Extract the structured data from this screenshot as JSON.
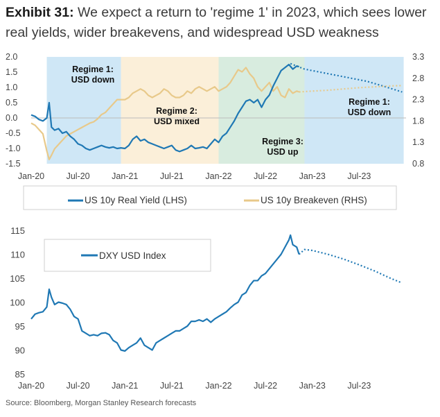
{
  "title": {
    "label": "Exhibit 31:",
    "text": "We expect a return to 'regime 1' in 2023, which sees lower real yields, wider breakevens, and widespread USD weakness"
  },
  "source": "Source: Bloomberg, Morgan Stanley Research forecasts",
  "colors": {
    "blue": "#1f78b4",
    "gold": "#e8c98a",
    "regime1": "#cfe7f6",
    "regime2": "#fbefd9",
    "regime3": "#d8ecdf",
    "grid": "#bbbbbb"
  },
  "chart_data": [
    {
      "type": "line",
      "x_tick_labels": [
        "Jan-20",
        "Jul-20",
        "Jan-21",
        "Jul-21",
        "Jan-22",
        "Jul-22",
        "Jan-23",
        "Jul-23"
      ],
      "x_range": [
        "2020-01",
        "2023-12"
      ],
      "ylim_left": [
        -1.5,
        2.0
      ],
      "yticks_left": [
        "2.0",
        "1.5",
        "1.0",
        "0.5",
        "0.0",
        "-0.5",
        "-1.0",
        "-1.5"
      ],
      "ylim_right": [
        0.8,
        3.3
      ],
      "yticks_right": [
        "3.3",
        "2.8",
        "2.3",
        "1.8",
        "1.3",
        "0.8"
      ],
      "regimes": [
        {
          "label1": "Regime 1:",
          "label2": "USD down",
          "start": 2,
          "end": 11.5,
          "color": "#cfe7f6"
        },
        {
          "label1": "Regime 2:",
          "label2": "USD mixed",
          "start": 11.5,
          "end": 24,
          "color": "#fbefd9"
        },
        {
          "label1": "Regime 3:",
          "label2": "USD up",
          "start": 24,
          "end": 35,
          "color": "#d8ecdf"
        },
        {
          "label1": "Regime 1:",
          "label2": "USD down",
          "start": 35,
          "end": 47.7,
          "color": "#cfe7f6"
        }
      ],
      "series": [
        {
          "name": "US 10y Real Yield (LHS)",
          "axis": "left",
          "color": "#1f78b4",
          "points": [
            [
              0,
              0.1
            ],
            [
              0.5,
              0.05
            ],
            [
              1,
              -0.05
            ],
            [
              1.5,
              -0.1
            ],
            [
              2,
              0.0
            ],
            [
              2.3,
              0.5
            ],
            [
              2.6,
              -0.3
            ],
            [
              3,
              -0.4
            ],
            [
              3.5,
              -0.35
            ],
            [
              4,
              -0.5
            ],
            [
              4.5,
              -0.45
            ],
            [
              5,
              -0.6
            ],
            [
              5.5,
              -0.7
            ],
            [
              6,
              -0.85
            ],
            [
              6.5,
              -0.9
            ],
            [
              7,
              -1.0
            ],
            [
              7.5,
              -1.05
            ],
            [
              8,
              -1.0
            ],
            [
              8.5,
              -0.95
            ],
            [
              9,
              -0.9
            ],
            [
              9.5,
              -0.95
            ],
            [
              10,
              -0.98
            ],
            [
              10.5,
              -0.95
            ],
            [
              11,
              -1.0
            ],
            [
              11.5,
              -0.98
            ],
            [
              12,
              -1.0
            ],
            [
              12.5,
              -0.9
            ],
            [
              13,
              -0.7
            ],
            [
              13.5,
              -0.6
            ],
            [
              14,
              -0.75
            ],
            [
              14.5,
              -0.7
            ],
            [
              15,
              -0.8
            ],
            [
              15.5,
              -0.85
            ],
            [
              16,
              -0.9
            ],
            [
              16.5,
              -0.95
            ],
            [
              17,
              -1.0
            ],
            [
              17.5,
              -0.95
            ],
            [
              18,
              -0.9
            ],
            [
              18.5,
              -1.05
            ],
            [
              19,
              -1.1
            ],
            [
              19.5,
              -1.05
            ],
            [
              20,
              -1.0
            ],
            [
              20.5,
              -0.9
            ],
            [
              21,
              -1.0
            ],
            [
              21.5,
              -0.98
            ],
            [
              22,
              -0.95
            ],
            [
              22.5,
              -1.0
            ],
            [
              23,
              -0.85
            ],
            [
              23.5,
              -0.7
            ],
            [
              24,
              -0.8
            ],
            [
              24.5,
              -0.6
            ],
            [
              25,
              -0.5
            ],
            [
              25.5,
              -0.3
            ],
            [
              26,
              -0.1
            ],
            [
              26.5,
              0.15
            ],
            [
              27,
              0.35
            ],
            [
              27.5,
              0.55
            ],
            [
              28,
              0.6
            ],
            [
              28.5,
              0.5
            ],
            [
              29,
              0.6
            ],
            [
              29.5,
              0.35
            ],
            [
              30,
              0.6
            ],
            [
              30.5,
              0.75
            ],
            [
              31,
              1.05
            ],
            [
              31.5,
              1.3
            ],
            [
              32,
              1.55
            ],
            [
              32.5,
              1.65
            ],
            [
              33,
              1.75
            ],
            [
              33.5,
              1.6
            ],
            [
              34,
              1.7
            ],
            [
              34.3,
              1.68
            ]
          ]
        },
        {
          "name": "US 10y Breakeven (RHS)",
          "axis": "right",
          "color": "#e8c98a",
          "points": [
            [
              0,
              1.75
            ],
            [
              0.5,
              1.7
            ],
            [
              1,
              1.6
            ],
            [
              1.5,
              1.5
            ],
            [
              2,
              1.1
            ],
            [
              2.3,
              0.9
            ],
            [
              2.6,
              1.0
            ],
            [
              3,
              1.15
            ],
            [
              3.5,
              1.25
            ],
            [
              4,
              1.35
            ],
            [
              4.5,
              1.45
            ],
            [
              5,
              1.5
            ],
            [
              5.5,
              1.55
            ],
            [
              6,
              1.6
            ],
            [
              6.5,
              1.65
            ],
            [
              7,
              1.7
            ],
            [
              7.5,
              1.75
            ],
            [
              8,
              1.78
            ],
            [
              8.5,
              1.85
            ],
            [
              9,
              1.95
            ],
            [
              9.5,
              2.0
            ],
            [
              10,
              2.1
            ],
            [
              10.5,
              2.2
            ],
            [
              11,
              2.3
            ],
            [
              11.5,
              2.3
            ],
            [
              12,
              2.3
            ],
            [
              12.5,
              2.35
            ],
            [
              13,
              2.45
            ],
            [
              13.5,
              2.5
            ],
            [
              14,
              2.55
            ],
            [
              14.5,
              2.5
            ],
            [
              15,
              2.4
            ],
            [
              15.5,
              2.35
            ],
            [
              16,
              2.4
            ],
            [
              16.5,
              2.45
            ],
            [
              17,
              2.55
            ],
            [
              17.5,
              2.5
            ],
            [
              18,
              2.4
            ],
            [
              18.5,
              2.35
            ],
            [
              19,
              2.35
            ],
            [
              19.5,
              2.4
            ],
            [
              20,
              2.5
            ],
            [
              20.5,
              2.45
            ],
            [
              21,
              2.55
            ],
            [
              21.5,
              2.6
            ],
            [
              22,
              2.55
            ],
            [
              22.5,
              2.5
            ],
            [
              23,
              2.55
            ],
            [
              23.5,
              2.6
            ],
            [
              24,
              2.5
            ],
            [
              24.5,
              2.55
            ],
            [
              25,
              2.6
            ],
            [
              25.5,
              2.7
            ],
            [
              26,
              2.85
            ],
            [
              26.5,
              3.0
            ],
            [
              27,
              2.95
            ],
            [
              27.5,
              3.05
            ],
            [
              28,
              2.9
            ],
            [
              28.5,
              2.8
            ],
            [
              29,
              2.6
            ],
            [
              29.5,
              2.5
            ],
            [
              30,
              2.6
            ],
            [
              30.5,
              2.7
            ],
            [
              31,
              2.5
            ],
            [
              31.5,
              2.6
            ],
            [
              32,
              2.4
            ],
            [
              32.5,
              2.35
            ],
            [
              33,
              2.55
            ],
            [
              33.5,
              2.45
            ],
            [
              34,
              2.5
            ],
            [
              34.3,
              2.48
            ]
          ]
        }
      ],
      "forecasts": [
        {
          "series": "US 10y Real Yield (LHS)",
          "axis": "left",
          "color": "#1f78b4",
          "points": [
            [
              33.2,
              1.78
            ],
            [
              34,
              1.7
            ],
            [
              35,
              1.6
            ],
            [
              37,
              1.5
            ],
            [
              39,
              1.4
            ],
            [
              41,
              1.3
            ],
            [
              43,
              1.2
            ],
            [
              45,
              1.05
            ],
            [
              47.5,
              0.85
            ]
          ]
        },
        {
          "series": "US 10y Breakeven (RHS)",
          "axis": "right",
          "color": "#e8c98a",
          "points": [
            [
              34.3,
              2.48
            ],
            [
              36,
              2.5
            ],
            [
              38,
              2.52
            ],
            [
              40,
              2.55
            ],
            [
              42,
              2.58
            ],
            [
              44,
              2.6
            ],
            [
              46,
              2.62
            ],
            [
              47.5,
              2.63
            ]
          ]
        }
      ]
    },
    {
      "type": "line",
      "x_tick_labels": [
        "Jan-20",
        "Jul-20",
        "Jan-21",
        "Jul-21",
        "Jan-22",
        "Jul-22",
        "Jan-23",
        "Jul-23"
      ],
      "x_range": [
        "2020-01",
        "2023-12"
      ],
      "ylim": [
        85,
        115
      ],
      "yticks": [
        "115",
        "110",
        "105",
        "100",
        "95",
        "90",
        "85"
      ],
      "series": [
        {
          "name": "DXY USD Index",
          "color": "#1f78b4",
          "points": [
            [
              0,
              96.5
            ],
            [
              0.5,
              97.5
            ],
            [
              1,
              97.8
            ],
            [
              1.5,
              98
            ],
            [
              2,
              99
            ],
            [
              2.3,
              102.7
            ],
            [
              2.6,
              101
            ],
            [
              3,
              99.5
            ],
            [
              3.5,
              100
            ],
            [
              4,
              99.8
            ],
            [
              4.5,
              99.5
            ],
            [
              5,
              98.5
            ],
            [
              5.5,
              97
            ],
            [
              6,
              96.5
            ],
            [
              6.5,
              94
            ],
            [
              7,
              93.5
            ],
            [
              7.5,
              93
            ],
            [
              8,
              93.2
            ],
            [
              8.5,
              93
            ],
            [
              9,
              93.5
            ],
            [
              9.5,
              93.6
            ],
            [
              10,
              93.2
            ],
            [
              10.5,
              92
            ],
            [
              11,
              91.5
            ],
            [
              11.5,
              90
            ],
            [
              12,
              89.8
            ],
            [
              12.5,
              90.5
            ],
            [
              13,
              91
            ],
            [
              13.5,
              91.5
            ],
            [
              14,
              92.5
            ],
            [
              14.5,
              91
            ],
            [
              15,
              90.5
            ],
            [
              15.5,
              90
            ],
            [
              16,
              91.5
            ],
            [
              16.5,
              92
            ],
            [
              17,
              92.5
            ],
            [
              17.5,
              93
            ],
            [
              18,
              93.5
            ],
            [
              18.5,
              94
            ],
            [
              19,
              94
            ],
            [
              19.5,
              94.5
            ],
            [
              20,
              95
            ],
            [
              20.5,
              96
            ],
            [
              21,
              96
            ],
            [
              21.5,
              96.3
            ],
            [
              22,
              96
            ],
            [
              22.5,
              96.5
            ],
            [
              23,
              95.8
            ],
            [
              23.5,
              96.5
            ],
            [
              24,
              97
            ],
            [
              24.5,
              97.5
            ],
            [
              25,
              98
            ],
            [
              25.5,
              98.8
            ],
            [
              26,
              99.5
            ],
            [
              26.5,
              100
            ],
            [
              27,
              101.5
            ],
            [
              27.5,
              102
            ],
            [
              28,
              103.5
            ],
            [
              28.5,
              104.5
            ],
            [
              29,
              104.5
            ],
            [
              29.5,
              105.5
            ],
            [
              30,
              106
            ],
            [
              30.5,
              107
            ],
            [
              31,
              108
            ],
            [
              31.5,
              109
            ],
            [
              32,
              110
            ],
            [
              32.5,
              111.5
            ],
            [
              33,
              113
            ],
            [
              33.2,
              114
            ],
            [
              33.5,
              112
            ],
            [
              34,
              111.5
            ],
            [
              34.3,
              110
            ]
          ]
        }
      ],
      "forecasts": [
        {
          "series": "DXY USD Index",
          "color": "#1f78b4",
          "points": [
            [
              34.3,
              110
            ],
            [
              35,
              111
            ],
            [
              36,
              110.8
            ],
            [
              38,
              110
            ],
            [
              40,
              109
            ],
            [
              42,
              107.8
            ],
            [
              44,
              106.5
            ],
            [
              46,
              105
            ],
            [
              47.5,
              104
            ]
          ]
        }
      ]
    }
  ]
}
